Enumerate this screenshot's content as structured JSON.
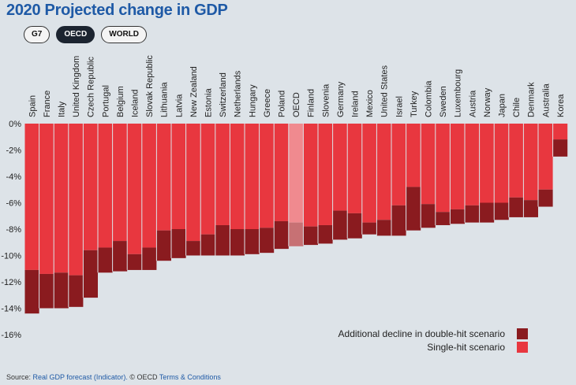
{
  "title": "2020 Projected change in GDP",
  "tabs": [
    {
      "label": "G7",
      "active": false
    },
    {
      "label": "OECD",
      "active": true
    },
    {
      "label": "WORLD",
      "active": false
    }
  ],
  "source": {
    "prefix": "Source: ",
    "link1": "Real GDP forecast (Indicator).",
    "middle": " © OECD ",
    "link2": "Terms & Conditions"
  },
  "colors": {
    "single": "#e8373f",
    "double": "#8a1b1f",
    "oecd_single": "#f08a8f",
    "oecd_double": "#c77174"
  },
  "chart_data": {
    "type": "bar",
    "stacked": true,
    "categories": [
      "Spain",
      "France",
      "Italy",
      "United Kingdom",
      "Czech Republic",
      "Portugal",
      "Belgium",
      "Iceland",
      "Slovak Republic",
      "Lithuania",
      "Latvia",
      "New Zealand",
      "Estonia",
      "Switzerland",
      "Netherlands",
      "Hungary",
      "Greece",
      "Poland",
      "OECD",
      "Finland",
      "Slovenia",
      "Germany",
      "Ireland",
      "Mexico",
      "United States",
      "Israel",
      "Turkey",
      "Colombia",
      "Sweden",
      "Luxembourg",
      "Austria",
      "Norway",
      "Japan",
      "Chile",
      "Denmark",
      "Australia",
      "Korea"
    ],
    "highlight": "OECD",
    "series": [
      {
        "name": "Single-hit scenario",
        "values": [
          -11.1,
          -11.4,
          -11.3,
          -11.5,
          -9.6,
          -9.4,
          -8.9,
          -9.9,
          -9.4,
          -8.1,
          -8.0,
          -8.9,
          -8.4,
          -7.7,
          -8.0,
          -8.0,
          -7.9,
          -7.4,
          -7.5,
          -7.8,
          -7.7,
          -6.6,
          -6.8,
          -7.5,
          -7.3,
          -6.2,
          -4.8,
          -6.1,
          -6.7,
          -6.5,
          -6.2,
          -6.0,
          -6.0,
          -5.6,
          -5.8,
          -5.0,
          -1.2
        ]
      },
      {
        "name": "Additional decline in double-hit scenario",
        "values": [
          -3.3,
          -2.6,
          -2.7,
          -2.4,
          -3.6,
          -1.9,
          -2.3,
          -1.2,
          -1.7,
          -2.3,
          -2.2,
          -1.1,
          -1.6,
          -2.3,
          -2.0,
          -1.9,
          -1.9,
          -2.1,
          -1.8,
          -1.4,
          -1.4,
          -2.2,
          -1.9,
          -0.9,
          -1.2,
          -2.3,
          -3.3,
          -1.8,
          -1.0,
          -1.1,
          -1.3,
          -1.5,
          -1.3,
          -1.5,
          -1.3,
          -1.3,
          -1.3
        ]
      }
    ],
    "yticks": [
      "0%",
      "-2%",
      "-4%",
      "-6%",
      "-8%",
      "-10%",
      "-12%",
      "-14%",
      "-16%"
    ],
    "ylim": [
      -16,
      0
    ],
    "legend": [
      {
        "label": "Additional decline in double-hit scenario",
        "color": "#8a1b1f"
      },
      {
        "label": "Single-hit scenario",
        "color": "#e8373f"
      }
    ],
    "legend_position": "bottom-right",
    "grid": false
  }
}
